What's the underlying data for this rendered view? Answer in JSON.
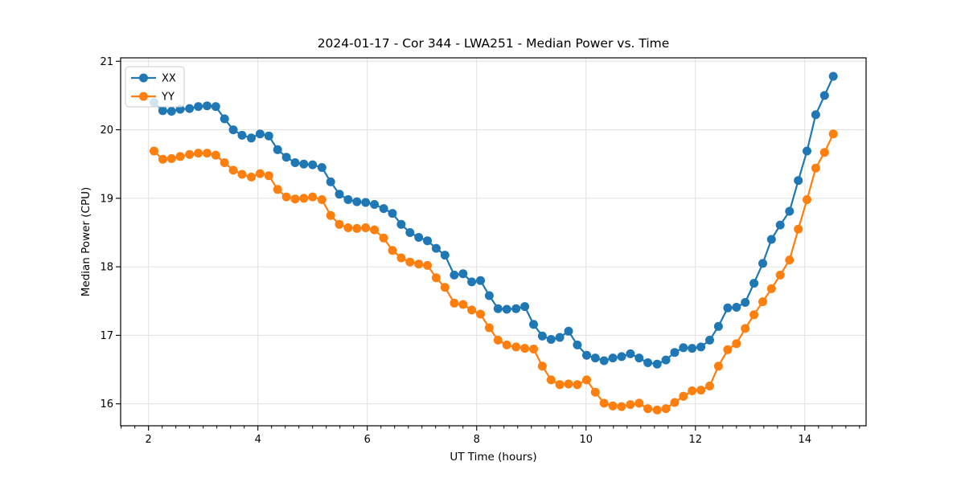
{
  "chart_data": {
    "type": "line",
    "title": "2024-01-17 - Cor 344 - LWA251 - Median Power vs. Time",
    "xlabel": "UT Time (hours)",
    "ylabel": "Median Power (CPU)",
    "xlim": [
      1.49,
      15.12
    ],
    "ylim": [
      15.68,
      21.05
    ],
    "xticks": [
      2,
      4,
      6,
      8,
      10,
      12,
      14
    ],
    "yticks": [
      16,
      17,
      18,
      19,
      20,
      21
    ],
    "x_minor_step": 0.25,
    "grid": true,
    "grid_color": "#e0e0e0",
    "background_color": "#ffffff",
    "legend_position": "upper-left",
    "marker": "circle",
    "x": [
      2.1,
      2.26,
      2.42,
      2.58,
      2.75,
      2.91,
      3.07,
      3.23,
      3.39,
      3.55,
      3.71,
      3.88,
      4.04,
      4.2,
      4.36,
      4.52,
      4.68,
      4.84,
      5.0,
      5.17,
      5.33,
      5.49,
      5.65,
      5.81,
      5.97,
      6.13,
      6.3,
      6.46,
      6.62,
      6.78,
      6.94,
      7.1,
      7.26,
      7.42,
      7.59,
      7.75,
      7.91,
      8.07,
      8.23,
      8.39,
      8.55,
      8.72,
      8.88,
      9.04,
      9.2,
      9.36,
      9.52,
      9.68,
      9.84,
      10.01,
      10.17,
      10.33,
      10.49,
      10.65,
      10.81,
      10.97,
      11.13,
      11.3,
      11.46,
      11.62,
      11.78,
      11.94,
      12.1,
      12.26,
      12.42,
      12.59,
      12.75,
      12.91,
      13.07,
      13.23,
      13.39,
      13.55,
      13.72,
      13.88,
      14.04,
      14.2,
      14.36,
      14.52
    ],
    "series": [
      {
        "name": "XX",
        "color": "#1f77b4",
        "values": [
          20.4,
          20.28,
          20.27,
          20.3,
          20.31,
          20.34,
          20.35,
          20.34,
          20.16,
          20.0,
          19.92,
          19.88,
          19.94,
          19.91,
          19.71,
          19.6,
          19.52,
          19.5,
          19.49,
          19.45,
          19.24,
          19.06,
          18.98,
          18.95,
          18.94,
          18.91,
          18.85,
          18.78,
          18.62,
          18.5,
          18.43,
          18.38,
          18.27,
          18.17,
          17.88,
          17.9,
          17.78,
          17.8,
          17.58,
          17.39,
          17.38,
          17.39,
          17.42,
          17.16,
          16.99,
          16.94,
          16.97,
          17.06,
          16.86,
          16.71,
          16.67,
          16.63,
          16.67,
          16.69,
          16.73,
          16.67,
          16.6,
          16.58,
          16.64,
          16.75,
          16.82,
          16.81,
          16.83,
          16.93,
          17.13,
          17.4,
          17.41,
          17.48,
          17.76,
          18.05,
          18.4,
          18.61,
          18.81,
          19.26,
          19.69,
          20.22,
          20.5,
          20.78
        ]
      },
      {
        "name": "YY",
        "color": "#ff7f0e",
        "values": [
          19.69,
          19.57,
          19.58,
          19.61,
          19.64,
          19.66,
          19.66,
          19.63,
          19.52,
          19.41,
          19.35,
          19.31,
          19.36,
          19.33,
          19.13,
          19.02,
          18.99,
          19.0,
          19.02,
          18.98,
          18.75,
          18.62,
          18.57,
          18.56,
          18.57,
          18.54,
          18.42,
          18.24,
          18.13,
          18.07,
          18.04,
          18.02,
          17.84,
          17.7,
          17.47,
          17.45,
          17.37,
          17.31,
          17.11,
          16.93,
          16.86,
          16.83,
          16.81,
          16.8,
          16.55,
          16.35,
          16.28,
          16.29,
          16.28,
          16.35,
          16.17,
          16.01,
          15.97,
          15.96,
          15.99,
          16.01,
          15.93,
          15.91,
          15.93,
          16.02,
          16.11,
          16.19,
          16.2,
          16.26,
          16.55,
          16.79,
          16.88,
          17.1,
          17.3,
          17.49,
          17.68,
          17.88,
          18.1,
          18.55,
          18.98,
          19.44,
          19.67,
          19.94
        ]
      }
    ]
  }
}
